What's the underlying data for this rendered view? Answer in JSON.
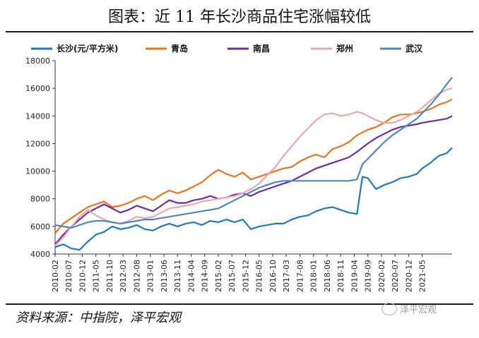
{
  "title": "图表：近 11 年长沙商品住宅涨幅较低",
  "source": "资料来源：中指院，泽平宏观",
  "watermark": "泽平宏观",
  "chart_data": {
    "type": "line",
    "ylim": [
      4000,
      18000
    ],
    "yticks": [
      4000,
      6000,
      8000,
      10000,
      12000,
      14000,
      16000,
      18000
    ],
    "x_tick_labels": [
      "2010-02",
      "2010-07",
      "2010-12",
      "2011-05",
      "2011-10",
      "2012-03",
      "2012-08",
      "2013-01",
      "2013-06",
      "2013-11",
      "2014-04",
      "2014-09",
      "2015-02",
      "2015-07",
      "2015-12",
      "2016-05",
      "2016-10",
      "2017-03",
      "2017-08",
      "2018-01",
      "2018-06",
      "2018-11",
      "2019-04",
      "2019-09",
      "2020-02",
      "2020-07",
      "2020-12",
      "2021-05"
    ],
    "x_unit": "month index from 2010-02 (0) to 2021-05 (135)",
    "series": [
      {
        "name": "长沙(元/平方米)",
        "color": "#1f77c4",
        "points": [
          [
            0,
            4500
          ],
          [
            3,
            4700
          ],
          [
            6,
            4400
          ],
          [
            9,
            4300
          ],
          [
            12,
            4900
          ],
          [
            15,
            5400
          ],
          [
            18,
            5600
          ],
          [
            21,
            6000
          ],
          [
            24,
            5800
          ],
          [
            27,
            5900
          ],
          [
            30,
            6100
          ],
          [
            33,
            5800
          ],
          [
            36,
            5700
          ],
          [
            39,
            6000
          ],
          [
            42,
            6200
          ],
          [
            45,
            6000
          ],
          [
            48,
            6200
          ],
          [
            51,
            6300
          ],
          [
            54,
            6100
          ],
          [
            57,
            6400
          ],
          [
            60,
            6300
          ],
          [
            63,
            6500
          ],
          [
            66,
            6300
          ],
          [
            69,
            6500
          ],
          [
            72,
            5800
          ],
          [
            75,
            6000
          ],
          [
            78,
            6100
          ],
          [
            81,
            6200
          ],
          [
            84,
            6200
          ],
          [
            87,
            6500
          ],
          [
            90,
            6700
          ],
          [
            93,
            6800
          ],
          [
            96,
            7100
          ],
          [
            99,
            7300
          ],
          [
            102,
            7400
          ],
          [
            105,
            7200
          ],
          [
            108,
            7000
          ],
          [
            111,
            6900
          ],
          [
            113,
            9600
          ],
          [
            115,
            9500
          ],
          [
            118,
            8700
          ],
          [
            121,
            9000
          ],
          [
            124,
            9200
          ],
          [
            127,
            9500
          ],
          [
            130,
            9600
          ],
          [
            133,
            9800
          ],
          [
            135,
            10200
          ],
          [
            138,
            10600
          ],
          [
            141,
            11100
          ],
          [
            144,
            11300
          ],
          [
            146,
            11700
          ]
        ]
      },
      {
        "name": "青岛",
        "color": "#e8741c",
        "points": [
          [
            0,
            5500
          ],
          [
            3,
            6200
          ],
          [
            6,
            6600
          ],
          [
            9,
            7000
          ],
          [
            12,
            7400
          ],
          [
            15,
            7600
          ],
          [
            18,
            7800
          ],
          [
            21,
            7400
          ],
          [
            24,
            7500
          ],
          [
            27,
            7700
          ],
          [
            30,
            8000
          ],
          [
            33,
            8200
          ],
          [
            36,
            7900
          ],
          [
            39,
            8300
          ],
          [
            42,
            8600
          ],
          [
            45,
            8400
          ],
          [
            48,
            8600
          ],
          [
            51,
            8900
          ],
          [
            54,
            9200
          ],
          [
            57,
            9700
          ],
          [
            60,
            10100
          ],
          [
            63,
            9800
          ],
          [
            66,
            9600
          ],
          [
            69,
            9900
          ],
          [
            72,
            9400
          ],
          [
            75,
            9600
          ],
          [
            78,
            9800
          ],
          [
            81,
            10000
          ],
          [
            84,
            10200
          ],
          [
            87,
            10300
          ],
          [
            90,
            10700
          ],
          [
            93,
            11000
          ],
          [
            96,
            11200
          ],
          [
            99,
            11000
          ],
          [
            102,
            11600
          ],
          [
            105,
            11800
          ],
          [
            108,
            12100
          ],
          [
            111,
            12600
          ],
          [
            113,
            12800
          ],
          [
            115,
            13000
          ],
          [
            118,
            13200
          ],
          [
            121,
            13500
          ],
          [
            124,
            13900
          ],
          [
            127,
            14100
          ],
          [
            130,
            14100
          ],
          [
            133,
            14200
          ],
          [
            135,
            14300
          ],
          [
            138,
            14500
          ],
          [
            141,
            14800
          ],
          [
            144,
            15000
          ],
          [
            146,
            15200
          ]
        ]
      },
      {
        "name": "南昌",
        "color": "#6a2ea0",
        "points": [
          [
            0,
            4700
          ],
          [
            3,
            5400
          ],
          [
            6,
            6000
          ],
          [
            9,
            6500
          ],
          [
            12,
            7000
          ],
          [
            15,
            7300
          ],
          [
            18,
            7600
          ],
          [
            21,
            7300
          ],
          [
            24,
            7000
          ],
          [
            27,
            7200
          ],
          [
            30,
            7500
          ],
          [
            33,
            7300
          ],
          [
            36,
            7100
          ],
          [
            39,
            7500
          ],
          [
            42,
            7900
          ],
          [
            45,
            7700
          ],
          [
            48,
            7700
          ],
          [
            51,
            7900
          ],
          [
            54,
            8000
          ],
          [
            57,
            8200
          ],
          [
            60,
            8000
          ],
          [
            63,
            8100
          ],
          [
            66,
            8300
          ],
          [
            69,
            8400
          ],
          [
            72,
            8200
          ],
          [
            75,
            8500
          ],
          [
            78,
            8700
          ],
          [
            81,
            8900
          ],
          [
            84,
            9100
          ],
          [
            87,
            9300
          ],
          [
            90,
            9600
          ],
          [
            93,
            9900
          ],
          [
            96,
            10200
          ],
          [
            99,
            10400
          ],
          [
            102,
            10600
          ],
          [
            105,
            10800
          ],
          [
            108,
            11000
          ],
          [
            111,
            11400
          ],
          [
            113,
            11700
          ],
          [
            115,
            12000
          ],
          [
            118,
            12400
          ],
          [
            121,
            12700
          ],
          [
            124,
            13000
          ],
          [
            127,
            13200
          ],
          [
            130,
            13300
          ],
          [
            133,
            13400
          ],
          [
            135,
            13500
          ],
          [
            138,
            13600
          ],
          [
            141,
            13700
          ],
          [
            144,
            13800
          ],
          [
            146,
            14000
          ]
        ]
      },
      {
        "name": "郑州",
        "color": "#e8a8ac",
        "points": [
          [
            0,
            4600
          ],
          [
            3,
            5200
          ],
          [
            6,
            6000
          ],
          [
            9,
            6700
          ],
          [
            12,
            7200
          ],
          [
            15,
            6800
          ],
          [
            18,
            6500
          ],
          [
            21,
            6300
          ],
          [
            24,
            6200
          ],
          [
            27,
            6400
          ],
          [
            30,
            6700
          ],
          [
            33,
            6600
          ],
          [
            36,
            6700
          ],
          [
            39,
            7000
          ],
          [
            42,
            7300
          ],
          [
            45,
            7400
          ],
          [
            48,
            7500
          ],
          [
            51,
            7600
          ],
          [
            54,
            7800
          ],
          [
            57,
            7900
          ],
          [
            60,
            8000
          ],
          [
            63,
            8100
          ],
          [
            66,
            8200
          ],
          [
            69,
            8400
          ],
          [
            72,
            8700
          ],
          [
            75,
            9100
          ],
          [
            78,
            9700
          ],
          [
            81,
            10300
          ],
          [
            84,
            11100
          ],
          [
            87,
            11800
          ],
          [
            90,
            12500
          ],
          [
            93,
            13100
          ],
          [
            96,
            13700
          ],
          [
            99,
            14100
          ],
          [
            102,
            14200
          ],
          [
            105,
            14000
          ],
          [
            108,
            14100
          ],
          [
            111,
            14300
          ],
          [
            113,
            14200
          ],
          [
            115,
            14000
          ],
          [
            118,
            13700
          ],
          [
            121,
            13500
          ],
          [
            124,
            13500
          ],
          [
            127,
            13700
          ],
          [
            130,
            14000
          ],
          [
            133,
            14300
          ],
          [
            135,
            14600
          ],
          [
            138,
            15100
          ],
          [
            141,
            15600
          ],
          [
            144,
            15900
          ],
          [
            146,
            16000
          ]
        ]
      },
      {
        "name": "武汉",
        "color": "#4c86c4",
        "points": [
          [
            0,
            6100
          ],
          [
            3,
            6000
          ],
          [
            6,
            5900
          ],
          [
            9,
            6100
          ],
          [
            12,
            6300
          ],
          [
            15,
            6400
          ],
          [
            18,
            6400
          ],
          [
            21,
            6300
          ],
          [
            24,
            6200
          ],
          [
            27,
            6300
          ],
          [
            30,
            6400
          ],
          [
            33,
            6500
          ],
          [
            36,
            6500
          ],
          [
            39,
            6600
          ],
          [
            42,
            6700
          ],
          [
            45,
            6800
          ],
          [
            48,
            6900
          ],
          [
            51,
            7000
          ],
          [
            54,
            7100
          ],
          [
            57,
            7200
          ],
          [
            60,
            7300
          ],
          [
            63,
            7600
          ],
          [
            66,
            7900
          ],
          [
            69,
            8200
          ],
          [
            72,
            8500
          ],
          [
            75,
            8800
          ],
          [
            78,
            9000
          ],
          [
            81,
            9200
          ],
          [
            84,
            9300
          ],
          [
            87,
            9300
          ],
          [
            90,
            9300
          ],
          [
            93,
            9300
          ],
          [
            96,
            9300
          ],
          [
            99,
            9300
          ],
          [
            102,
            9300
          ],
          [
            105,
            9300
          ],
          [
            108,
            9300
          ],
          [
            111,
            9400
          ],
          [
            113,
            10500
          ],
          [
            115,
            10900
          ],
          [
            118,
            11500
          ],
          [
            121,
            12100
          ],
          [
            124,
            12600
          ],
          [
            127,
            13000
          ],
          [
            130,
            13400
          ],
          [
            133,
            13800
          ],
          [
            135,
            14200
          ],
          [
            138,
            14800
          ],
          [
            141,
            15500
          ],
          [
            144,
            16300
          ],
          [
            146,
            16800
          ]
        ]
      }
    ]
  }
}
